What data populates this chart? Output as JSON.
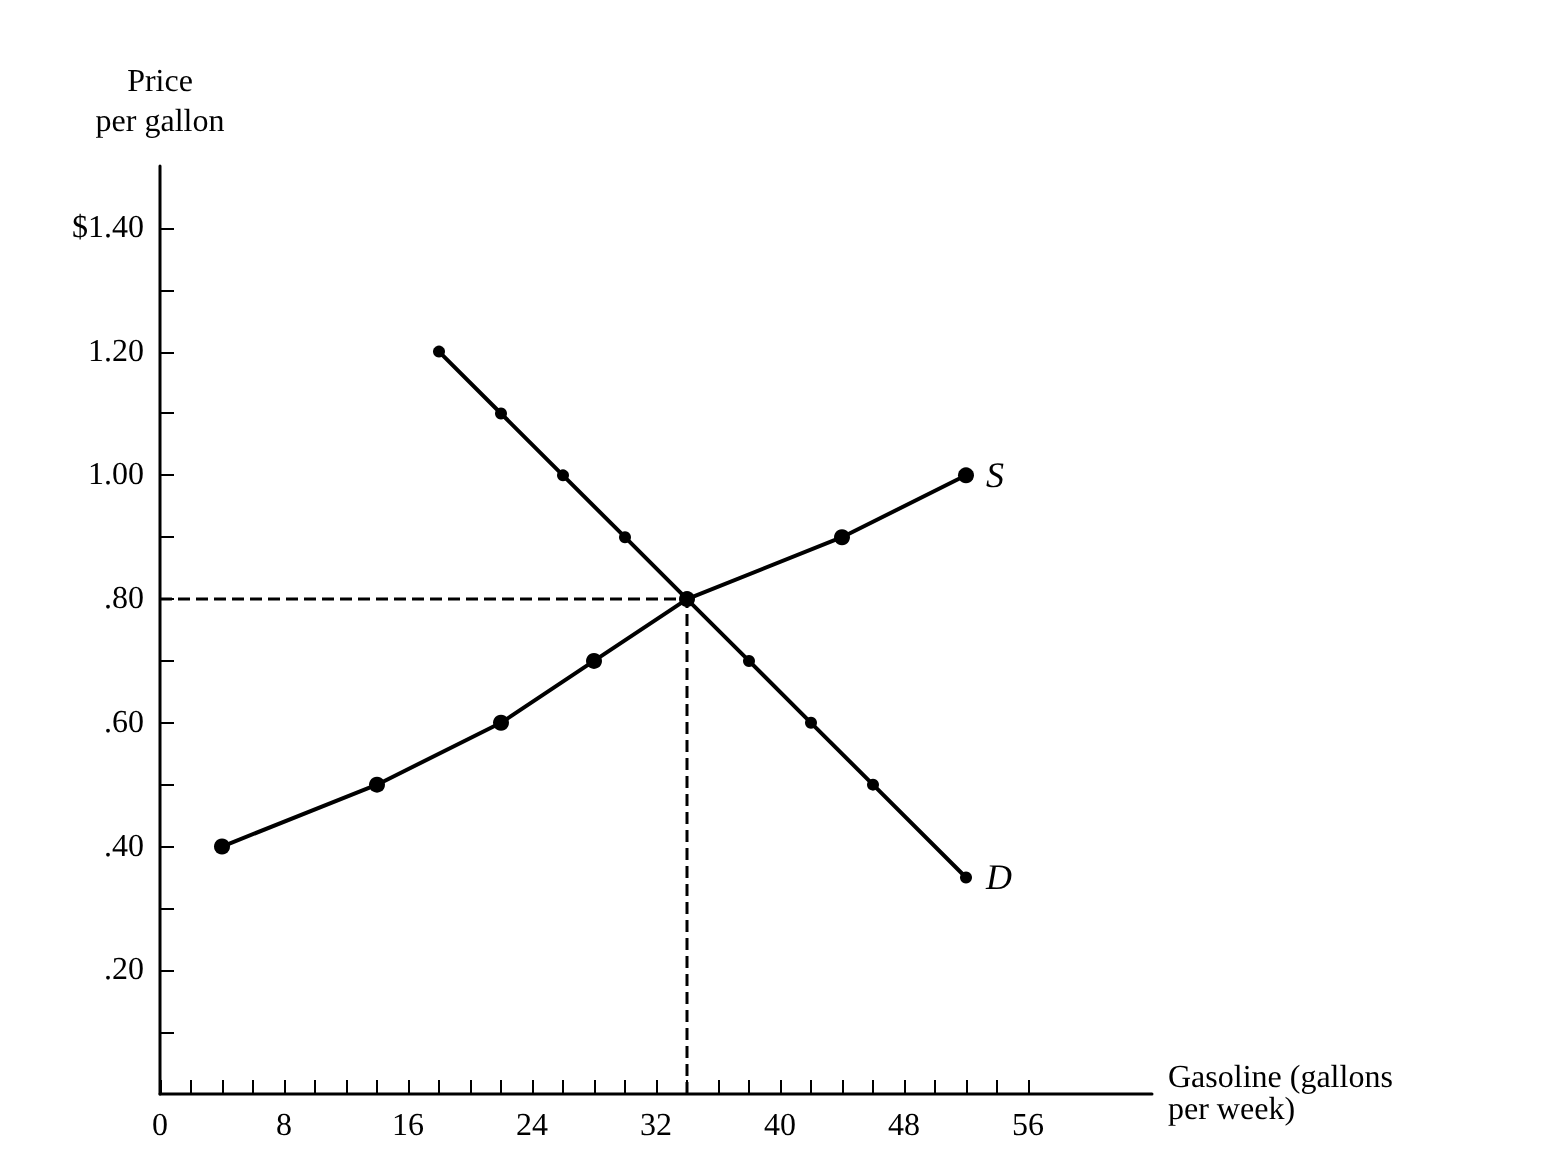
{
  "chart_data": {
    "type": "line",
    "xlabel": "Gasoline (gallons\nper week)",
    "ylabel": "Price\nper gallon",
    "xlim": [
      0,
      64
    ],
    "ylim": [
      0,
      1.5
    ],
    "xticks": [
      0,
      {
        "value": 2,
        "label": null
      },
      {
        "value": 4,
        "label": null
      },
      {
        "value": 6,
        "label": null
      },
      8,
      {
        "value": 10,
        "label": null
      },
      {
        "value": 12,
        "label": null
      },
      {
        "value": 14,
        "label": null
      },
      16,
      {
        "value": 18,
        "label": null
      },
      {
        "value": 20,
        "label": null
      },
      {
        "value": 22,
        "label": null
      },
      24,
      {
        "value": 26,
        "label": null
      },
      {
        "value": 28,
        "label": null
      },
      {
        "value": 30,
        "label": null
      },
      32,
      {
        "value": 34,
        "label": null
      },
      {
        "value": 36,
        "label": null
      },
      {
        "value": 38,
        "label": null
      },
      40,
      {
        "value": 42,
        "label": null
      },
      {
        "value": 44,
        "label": null
      },
      {
        "value": 46,
        "label": null
      },
      48,
      {
        "value": 50,
        "label": null
      },
      {
        "value": 52,
        "label": null
      },
      {
        "value": 54,
        "label": null
      },
      56
    ],
    "yticks": [
      {
        "value": 0.1,
        "label": null
      },
      {
        "value": 0.2,
        "label": ".20"
      },
      {
        "value": 0.3,
        "label": null
      },
      {
        "value": 0.4,
        "label": ".40"
      },
      {
        "value": 0.5,
        "label": null
      },
      {
        "value": 0.6,
        "label": ".60"
      },
      {
        "value": 0.7,
        "label": null
      },
      {
        "value": 0.8,
        "label": ".80"
      },
      {
        "value": 0.9,
        "label": null
      },
      {
        "value": 1.0,
        "label": "1.00"
      },
      {
        "value": 1.1,
        "label": null
      },
      {
        "value": 1.2,
        "label": "1.20"
      },
      {
        "value": 1.3,
        "label": null
      },
      {
        "value": 1.4,
        "label": "$1.40"
      }
    ],
    "series": [
      {
        "name": "S",
        "color": "#000000",
        "x": [
          4,
          14,
          22,
          28,
          34,
          44,
          52
        ],
        "values": [
          0.4,
          0.5,
          0.6,
          0.7,
          0.8,
          0.9,
          1.0
        ]
      },
      {
        "name": "D",
        "color": "#000000",
        "x": [
          18,
          22,
          26,
          30,
          34,
          38,
          42,
          46,
          52
        ],
        "values": [
          1.2,
          1.1,
          1.0,
          0.9,
          0.8,
          0.7,
          0.6,
          0.5,
          0.35
        ]
      }
    ],
    "ref_lines": [
      {
        "axis": "x",
        "value": 34,
        "label": null,
        "line_style": "dashed"
      },
      {
        "axis": "y",
        "value": 0.8,
        "label": null,
        "line_style": "dashed"
      }
    ],
    "marker": "circle",
    "line_style": "solid",
    "grid": false,
    "legend": false
  }
}
